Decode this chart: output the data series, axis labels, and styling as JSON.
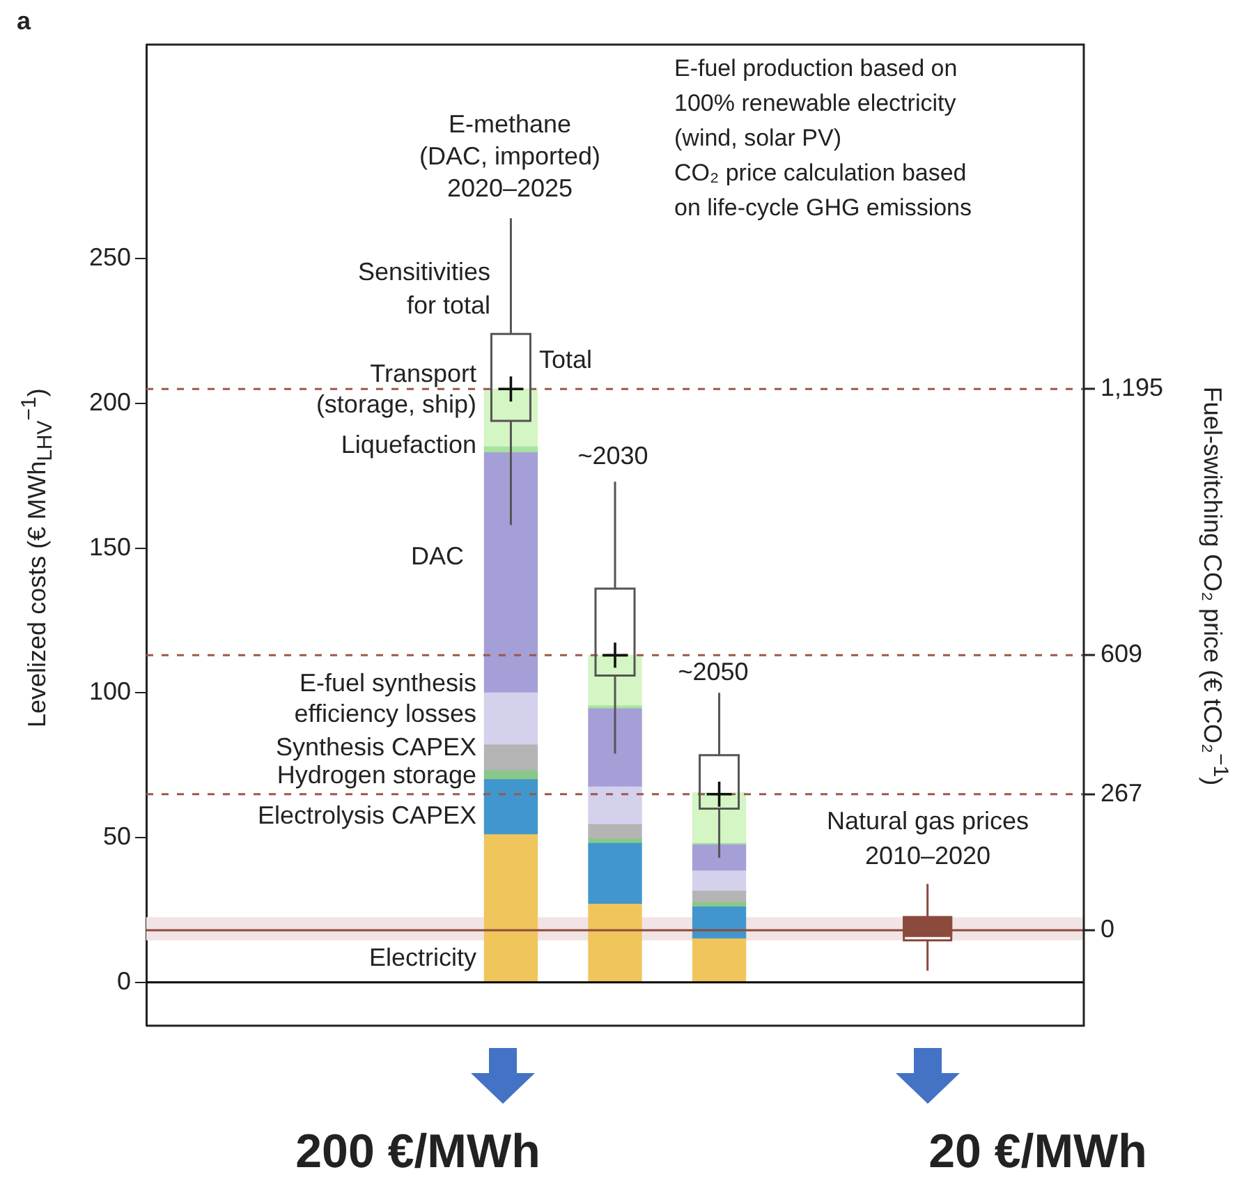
{
  "chart_data": {
    "type": "bar",
    "title": "a",
    "ylabel": "Levelized costs (€ MWh$_{LHV}$$^{−1}$)",
    "y2label": "Fuel-switching CO₂ price (€ tCO₂$^{−1}$)",
    "categories": [
      null,
      null,
      null,
      null,
      null,
      null,
      null,
      null,
      null
    ],
    "stacked": true,
    "series": [
      {
        "name": "Electricity",
        "color": "#f0c55c",
        "values": [
          null,
          null,
          null,
          51,
          27,
          15,
          null,
          null,
          null
        ]
      },
      {
        "name": "Electrolysis CAPEX",
        "color": "#4196cd",
        "values": [
          null,
          null,
          null,
          19,
          21,
          11,
          null,
          null,
          null
        ]
      },
      {
        "name": "Hydrogen storage",
        "color": "#88c888",
        "values": [
          null,
          null,
          null,
          3,
          1.5,
          1.5,
          null,
          null,
          null
        ]
      },
      {
        "name": "Synthesis CAPEX",
        "color": "#b4b4b4",
        "values": [
          null,
          null,
          null,
          9,
          5,
          4,
          null,
          null,
          null
        ]
      },
      {
        "name": "E-fuel synthesis\nefficiency losses",
        "color": "#d4d1ec",
        "values": [
          null,
          null,
          null,
          18,
          13,
          7,
          null,
          null,
          null
        ]
      },
      {
        "name": "DAC",
        "color": "#a59fd8",
        "values": [
          null,
          null,
          null,
          83,
          27,
          9,
          null,
          null,
          null
        ]
      },
      {
        "name": "Liquefaction",
        "color": "#a6e49e",
        "values": [
          null,
          null,
          null,
          2,
          1,
          0.5,
          null,
          null,
          null
        ]
      },
      {
        "name": "Transport\n(storage, ship)",
        "color": "#d4f5c4",
        "values": [
          null,
          null,
          null,
          20,
          17.5,
          17.5,
          null,
          null,
          null
        ]
      },
      {
        "type": "box",
        "color": "#555555",
        "boxes": [
          null,
          null,
          null,
          {
            "low": 158,
            "q1": 194,
            "median": 205,
            "q3": 224,
            "high": 264,
            "mean": 205
          },
          {
            "low": 79,
            "q1": 106,
            "median": 113,
            "q3": 136,
            "high": 173,
            "mean": 113
          },
          {
            "low": 43,
            "q1": 60,
            "median": 65,
            "q3": 78.5,
            "high": 100,
            "mean": 65
          },
          null,
          null,
          null
        ]
      },
      {
        "type": "box",
        "color": "#8b4a3c",
        "boxes": [
          null,
          null,
          null,
          null,
          null,
          null,
          null,
          {
            "low": 4,
            "q1": 14.5,
            "median": 16,
            "q3": 22.5,
            "high": 34
          },
          null
        ]
      }
    ],
    "ylim": [
      -15,
      324
    ],
    "yticks": [
      0,
      50,
      100,
      150,
      200,
      250
    ],
    "ref_lines": [
      {
        "axis": "y",
        "value": 205,
        "color": "#9a5a4a",
        "line_style": "dashed"
      },
      {
        "axis": "y",
        "value": 113,
        "color": "#9a5a4a",
        "line_style": "dashed"
      },
      {
        "axis": "y",
        "value": 65,
        "color": "#9a5a4a",
        "line_style": "dashed"
      },
      {
        "axis": "y",
        "value": 18,
        "color": "#8b4a3c",
        "line_style": "solid"
      },
      {
        "axis": "y",
        "value": 0,
        "color": "#000000",
        "line_style": "solid"
      }
    ],
    "bands": [
      {
        "axis": "y",
        "from": 14.5,
        "to": 22.5,
        "color": "#f2e4e4"
      }
    ],
    "annotations": [
      "E-methane\n(DAC, imported)\n2020–2025",
      "Sensitivities\nfor total",
      "Total",
      "~2030",
      "~2050",
      "Natural gas prices\n2010–2020",
      "E-fuel production based on\n100% renewable electricity\n(wind, solar PV)\nCO₂ price calculation based\non life-cycle GHG emissions",
      "200 €/MWh",
      "20 €/MWh",
      "1,195",
      "609",
      "267",
      "0"
    ]
  }
}
